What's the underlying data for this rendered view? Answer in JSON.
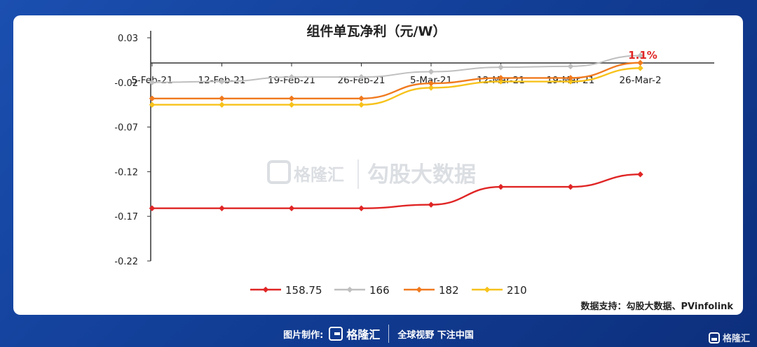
{
  "watermark": {
    "brand": "格隆汇",
    "text": "勾股大数据"
  },
  "source_text": "数据支持：勾股大数据、PVinfolink",
  "footer": {
    "label": "图片制作:",
    "brand": "格隆汇",
    "slogan": "全球视野 下注中国"
  },
  "corner_brand": "格隆汇",
  "chart_data": {
    "type": "line",
    "title": "组件单瓦净利（元/W）",
    "categories": [
      "5-Feb-21",
      "12-Feb-21",
      "19-Feb-21",
      "26-Feb-21",
      "5-Mar-21",
      "12-Mar-21",
      "19-Mar-21",
      "26-Mar-2"
    ],
    "y_ticks": [
      "0.03",
      "-0.02",
      "-0.07",
      "-0.12",
      "-0.17",
      "-0.22"
    ],
    "ylim": [
      -0.22,
      0.03
    ],
    "series": [
      {
        "name": "158.75",
        "color": "#e02525",
        "values": [
          -0.161,
          -0.161,
          -0.161,
          -0.161,
          -0.157,
          -0.137,
          -0.137,
          -0.123
        ]
      },
      {
        "name": "166",
        "color": "#bfbfbf",
        "values": [
          -0.02,
          -0.019,
          -0.014,
          -0.014,
          -0.008,
          -0.003,
          -0.002,
          0.01
        ]
      },
      {
        "name": "182",
        "color": "#f07a1f",
        "values": [
          -0.038,
          -0.038,
          -0.038,
          -0.038,
          -0.021,
          -0.015,
          -0.015,
          0.002
        ]
      },
      {
        "name": "210",
        "color": "#f7c21a",
        "values": [
          -0.045,
          -0.045,
          -0.045,
          -0.045,
          -0.026,
          -0.019,
          -0.019,
          -0.004
        ]
      }
    ],
    "annotation": {
      "text": "1.1%",
      "color": "#e02525"
    }
  }
}
